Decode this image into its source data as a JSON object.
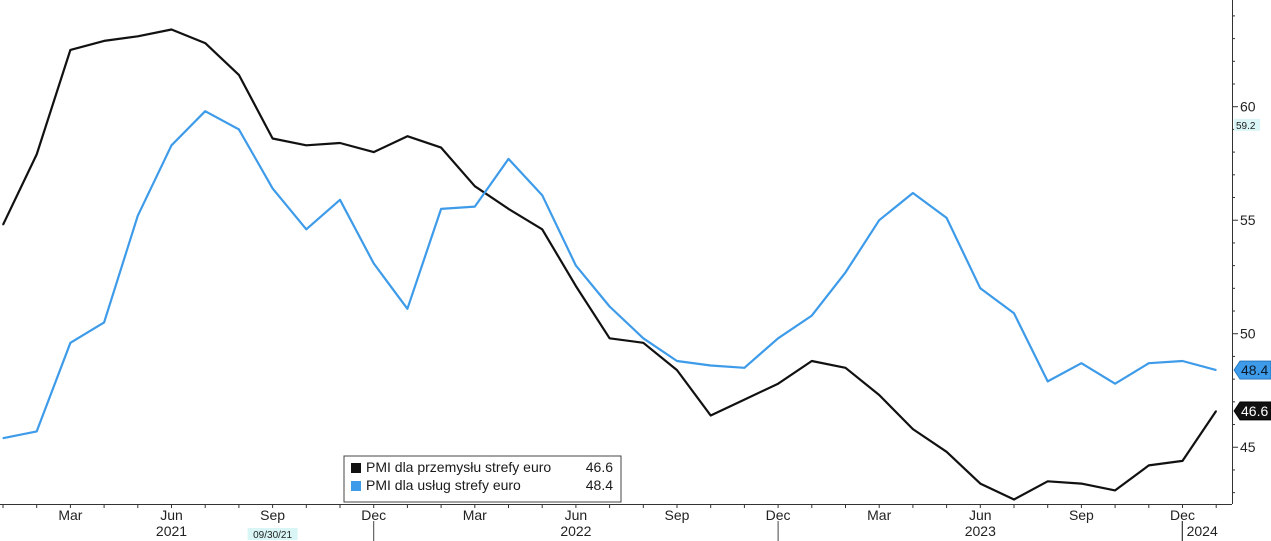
{
  "chart_data": {
    "type": "line",
    "title": "",
    "xlabel": "",
    "ylabel": "",
    "x": [
      "2021-01",
      "2021-02",
      "2021-03",
      "2021-04",
      "2021-05",
      "2021-06",
      "2021-07",
      "2021-08",
      "2021-09",
      "2021-10",
      "2021-11",
      "2021-12",
      "2022-01",
      "2022-02",
      "2022-03",
      "2022-04",
      "2022-05",
      "2022-06",
      "2022-07",
      "2022-08",
      "2022-09",
      "2022-10",
      "2022-11",
      "2022-12",
      "2023-01",
      "2023-02",
      "2023-03",
      "2023-04",
      "2023-05",
      "2023-06",
      "2023-07",
      "2023-08",
      "2023-09",
      "2023-10",
      "2023-11",
      "2023-12",
      "2024-01"
    ],
    "series": [
      {
        "name": "PMI dla przemysłu strefy euro",
        "color": "#111111",
        "last_label": "46.6",
        "values": [
          54.8,
          57.9,
          62.5,
          62.9,
          63.1,
          63.4,
          62.8,
          61.4,
          58.6,
          58.3,
          58.4,
          58.0,
          58.7,
          58.2,
          56.5,
          55.5,
          54.6,
          52.1,
          49.8,
          49.6,
          48.4,
          46.4,
          47.1,
          47.8,
          48.8,
          48.5,
          47.3,
          45.8,
          44.8,
          43.4,
          42.7,
          43.5,
          43.4,
          43.1,
          44.2,
          44.4,
          46.6
        ]
      },
      {
        "name": "PMI dla usług strefy euro",
        "color": "#3d9be9",
        "last_label": "48.4",
        "values": [
          45.4,
          45.7,
          49.6,
          50.5,
          55.2,
          58.3,
          59.8,
          59.0,
          56.4,
          54.6,
          55.9,
          53.1,
          51.1,
          55.5,
          55.6,
          57.7,
          56.1,
          53.0,
          51.2,
          49.8,
          48.8,
          48.6,
          48.5,
          49.8,
          50.8,
          52.7,
          55.0,
          56.2,
          55.1,
          52.0,
          50.9,
          47.9,
          48.7,
          47.8,
          48.7,
          48.8,
          48.4
        ]
      }
    ],
    "ylim": [
      42.5,
      64.7
    ],
    "y_ticks": [
      "45",
      "50",
      "55",
      "60"
    ],
    "y_tick_values": [
      45,
      50,
      55,
      60
    ],
    "y_axis_side": "right",
    "y_marker": "59.2",
    "y_marker_value": 59.2,
    "x_month_ticks": [
      {
        "label": "Mar",
        "x": "2021-03"
      },
      {
        "label": "Jun",
        "x": "2021-06"
      },
      {
        "label": "Sep",
        "x": "2021-09"
      },
      {
        "label": "Dec",
        "x": "2021-12"
      },
      {
        "label": "Mar",
        "x": "2022-03"
      },
      {
        "label": "Jun",
        "x": "2022-06"
      },
      {
        "label": "Sep",
        "x": "2022-09"
      },
      {
        "label": "Dec",
        "x": "2022-12"
      },
      {
        "label": "Mar",
        "x": "2023-03"
      },
      {
        "label": "Jun",
        "x": "2023-06"
      },
      {
        "label": "Sep",
        "x": "2023-09"
      },
      {
        "label": "Dec",
        "x": "2023-12"
      }
    ],
    "x_year_ticks": [
      {
        "label": "2021",
        "x": "2021-06"
      },
      {
        "label": "2022",
        "x": "2022-06"
      },
      {
        "label": "2023",
        "x": "2023-06"
      },
      {
        "label": "2024",
        "x": "2024-01"
      }
    ],
    "x_marker": "09/30/21",
    "x_marker_value": "2021-09",
    "legend": {
      "placement": "bottom-center",
      "entries": [
        {
          "text": "PMI dla przemysłu strefy euro",
          "value": "46.6",
          "color": "#111111"
        },
        {
          "text": "PMI dla usług strefy euro",
          "value": "48.4",
          "color": "#3d9be9"
        }
      ]
    },
    "grid": false
  }
}
